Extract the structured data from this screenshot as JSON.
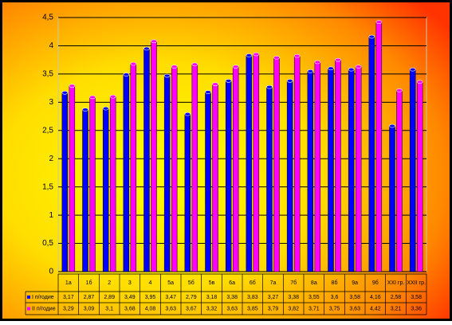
{
  "chart_data": {
    "type": "bar",
    "categories": [
      "1а",
      "1б",
      "2",
      "3",
      "4",
      "5а",
      "5б",
      "5в",
      "6а",
      "6б",
      "7а",
      "7б",
      "8а",
      "8б",
      "9а",
      "9б",
      "XXI гр.",
      "XXII гр."
    ],
    "series": [
      {
        "name": "I п/годие",
        "color": "#0000ff",
        "values": [
          3.17,
          2.87,
          2.89,
          3.49,
          3.95,
          3.47,
          2.79,
          3.18,
          3.38,
          3.83,
          3.27,
          3.38,
          3.55,
          3.6,
          3.58,
          4.16,
          2.58,
          3.58
        ],
        "value_labels": [
          "3,17",
          "2,87",
          "2,89",
          "3,49",
          "3,95",
          "3,47",
          "2,79",
          "3,18",
          "3,38",
          "3,83",
          "3,27",
          "3,38",
          "3,55",
          "3,6",
          "3,58",
          "4,16",
          "2,58",
          "3,58"
        ]
      },
      {
        "name": "II п/годие",
        "color": "#ff00ff",
        "values": [
          3.29,
          3.09,
          3.1,
          3.68,
          4.08,
          3.63,
          3.67,
          3.32,
          3.63,
          3.85,
          3.79,
          3.82,
          3.71,
          3.75,
          3.63,
          4.42,
          3.21,
          3.36
        ],
        "value_labels": [
          "3,29",
          "3,09",
          "3,1",
          "3,68",
          "4,08",
          "3,63",
          "3,67",
          "3,32",
          "3,63",
          "3,85",
          "3,79",
          "3,82",
          "3,71",
          "3,75",
          "3,63",
          "4,42",
          "3,21",
          "3,36"
        ]
      }
    ],
    "ylim": [
      0,
      4.5
    ],
    "yticks": [
      0,
      {
        "value": 0.5,
        "label": "0,5"
      },
      1,
      {
        "value": 1.5,
        "label": "1,5"
      },
      2,
      {
        "value": 2.5,
        "label": "2,5"
      },
      3,
      {
        "value": 3.5,
        "label": "3,5"
      },
      4,
      {
        "value": 4.5,
        "label": "4,5"
      }
    ],
    "grid": true
  }
}
